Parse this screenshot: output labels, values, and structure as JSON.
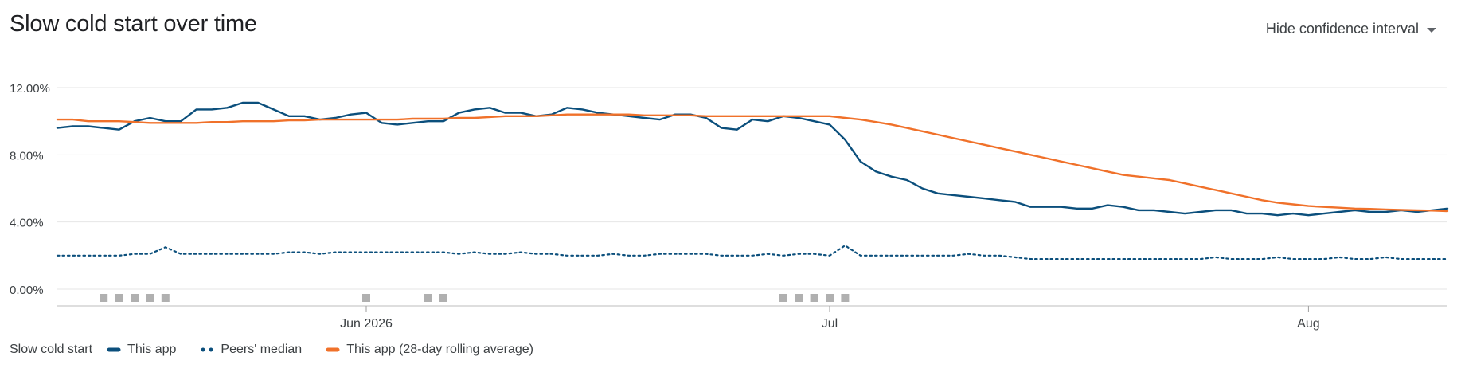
{
  "header": {
    "title": "Slow cold start over time",
    "ci_toggle_label": "Hide confidence interval",
    "caret_icon": "chevron-down-icon"
  },
  "legend": {
    "title": "Slow cold start",
    "items": [
      {
        "label": "This app",
        "color": "#0b4f7c",
        "style": "solid"
      },
      {
        "label": "Peers' median",
        "color": "#0b4f7c",
        "style": "dotted"
      },
      {
        "label": "This app (28-day rolling average)",
        "color": "#f0712a",
        "style": "solid"
      }
    ]
  },
  "chart_data": {
    "type": "line",
    "x_start": "2026-05-12",
    "x_end": "2026-08-10",
    "ylim": [
      0,
      13
    ],
    "y_ticks": [
      0,
      4,
      8,
      12
    ],
    "y_tick_labels": [
      "0.00%",
      "4.00%",
      "8.00%",
      "12.00%"
    ],
    "x_ticks": [
      {
        "date": "2026-06-01",
        "label": "Jun 2026"
      },
      {
        "date": "2026-07-01",
        "label": "Jul"
      },
      {
        "date": "2026-08-01",
        "label": "Aug"
      }
    ],
    "grid": true,
    "legend_position": "bottom-left",
    "event_marker_dates": [
      "2026-05-15",
      "2026-05-16",
      "2026-05-17",
      "2026-05-18",
      "2026-05-19",
      "2026-06-01",
      "2026-06-05",
      "2026-06-06",
      "2026-06-28",
      "2026-06-29",
      "2026-06-30",
      "2026-07-01",
      "2026-07-02"
    ],
    "event_marker_color": "#b0b0b0",
    "series": [
      {
        "name": "This app",
        "color": "#0b4f7c",
        "style": "solid",
        "values": [
          9.6,
          9.7,
          9.7,
          9.6,
          9.5,
          10.0,
          10.2,
          10.0,
          10.0,
          10.7,
          10.7,
          10.8,
          11.1,
          11.1,
          10.7,
          10.3,
          10.3,
          10.1,
          10.2,
          10.4,
          10.5,
          9.9,
          9.8,
          9.9,
          10.0,
          10.0,
          10.5,
          10.7,
          10.8,
          10.5,
          10.5,
          10.3,
          10.4,
          10.8,
          10.7,
          10.5,
          10.4,
          10.3,
          10.2,
          10.1,
          10.4,
          10.4,
          10.2,
          9.6,
          9.5,
          10.1,
          10.0,
          10.3,
          10.2,
          10.0,
          9.8,
          8.9,
          7.6,
          7.0,
          6.7,
          6.5,
          6.0,
          5.7,
          5.6,
          5.5,
          5.4,
          5.3,
          5.2,
          4.9,
          4.9,
          4.9,
          4.8,
          4.8,
          5.0,
          4.9,
          4.7,
          4.7,
          4.6,
          4.5,
          4.6,
          4.7,
          4.7,
          4.5,
          4.5,
          4.4,
          4.5,
          4.4,
          4.5,
          4.6,
          4.7,
          4.6,
          4.6,
          4.7,
          4.6,
          4.7,
          4.8
        ]
      },
      {
        "name": "Peers' median",
        "color": "#0b4f7c",
        "style": "dotted",
        "values": [
          2.0,
          2.0,
          2.0,
          2.0,
          2.0,
          2.1,
          2.1,
          2.5,
          2.1,
          2.1,
          2.1,
          2.1,
          2.1,
          2.1,
          2.1,
          2.2,
          2.2,
          2.1,
          2.2,
          2.2,
          2.2,
          2.2,
          2.2,
          2.2,
          2.2,
          2.2,
          2.1,
          2.2,
          2.1,
          2.1,
          2.2,
          2.1,
          2.1,
          2.0,
          2.0,
          2.0,
          2.1,
          2.0,
          2.0,
          2.1,
          2.1,
          2.1,
          2.1,
          2.0,
          2.0,
          2.0,
          2.1,
          2.0,
          2.1,
          2.1,
          2.0,
          2.6,
          2.0,
          2.0,
          2.0,
          2.0,
          2.0,
          2.0,
          2.0,
          2.1,
          2.0,
          2.0,
          1.9,
          1.8,
          1.8,
          1.8,
          1.8,
          1.8,
          1.8,
          1.8,
          1.8,
          1.8,
          1.8,
          1.8,
          1.8,
          1.9,
          1.8,
          1.8,
          1.8,
          1.9,
          1.8,
          1.8,
          1.8,
          1.9,
          1.8,
          1.8,
          1.9,
          1.8,
          1.8,
          1.8,
          1.8
        ]
      },
      {
        "name": "This app (28-day rolling average)",
        "color": "#f0712a",
        "style": "solid",
        "values": [
          10.1,
          10.1,
          10.0,
          10.0,
          10.0,
          9.95,
          9.9,
          9.9,
          9.9,
          9.9,
          9.95,
          9.95,
          10.0,
          10.0,
          10.0,
          10.05,
          10.05,
          10.1,
          10.1,
          10.1,
          10.1,
          10.1,
          10.1,
          10.15,
          10.15,
          10.15,
          10.2,
          10.2,
          10.25,
          10.3,
          10.3,
          10.3,
          10.35,
          10.4,
          10.4,
          10.4,
          10.4,
          10.4,
          10.35,
          10.35,
          10.35,
          10.35,
          10.3,
          10.3,
          10.3,
          10.3,
          10.3,
          10.3,
          10.3,
          10.3,
          10.3,
          10.2,
          10.1,
          9.95,
          9.8,
          9.6,
          9.4,
          9.2,
          9.0,
          8.8,
          8.6,
          8.4,
          8.2,
          8.0,
          7.8,
          7.6,
          7.4,
          7.2,
          7.0,
          6.8,
          6.7,
          6.6,
          6.5,
          6.3,
          6.1,
          5.9,
          5.7,
          5.5,
          5.3,
          5.15,
          5.05,
          4.95,
          4.9,
          4.85,
          4.8,
          4.78,
          4.75,
          4.72,
          4.7,
          4.68,
          4.65
        ]
      }
    ]
  }
}
